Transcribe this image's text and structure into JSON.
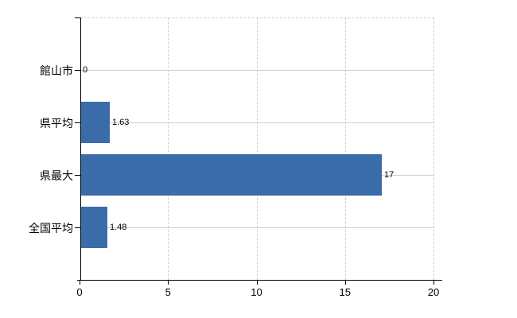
{
  "chart_data": {
    "type": "bar",
    "orientation": "horizontal",
    "title": "",
    "xlabel": "",
    "ylabel": "",
    "categories": [
      "館山市",
      "県平均",
      "県最大",
      "全国平均"
    ],
    "values": [
      0,
      1.63,
      17,
      1.48
    ],
    "value_labels": [
      "0",
      "1.63",
      "17",
      "1.48"
    ],
    "xlim": [
      0,
      20
    ],
    "xticks": [
      0,
      5,
      10,
      15,
      20
    ],
    "xtick_labels": [
      "0",
      "5",
      "10",
      "15",
      "20"
    ],
    "grid": "on",
    "legend": "none",
    "colors": {
      "bar": "#3b6caa",
      "axis": "#000000",
      "gridline_horizontal": "#cdd3cd",
      "gridline_vertical": "#c9cfc9",
      "text": "#000000",
      "background": "#ffffff"
    }
  }
}
